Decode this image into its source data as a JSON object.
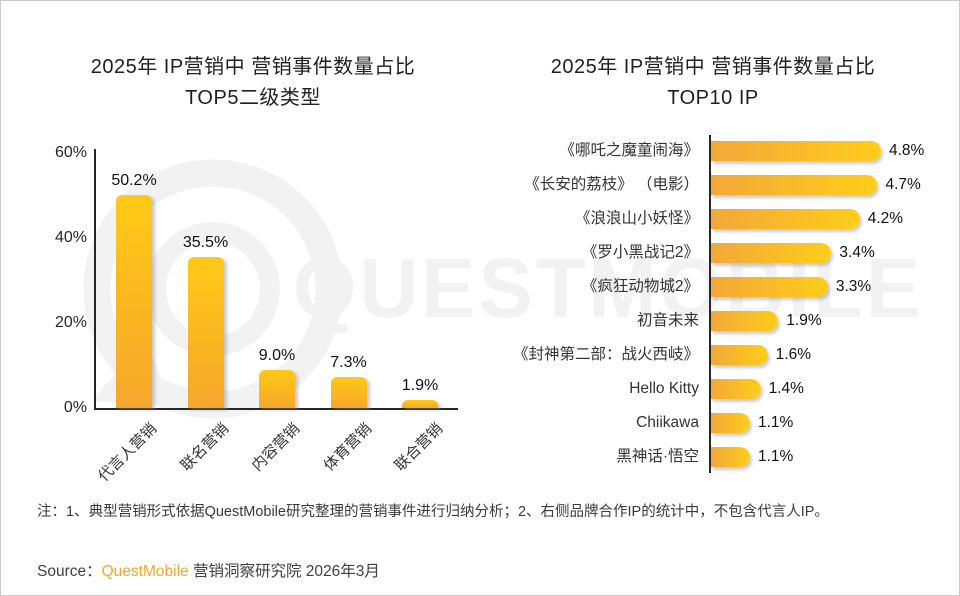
{
  "page": {
    "background": "#ffffff",
    "border_color": "#c9c9c9"
  },
  "watermark": {
    "text": "QUESTMOBILE",
    "color": "#f2f2f2",
    "logo": "questmobile-q-ring-logo"
  },
  "colors": {
    "bar_vertical_top": "#FFC917",
    "bar_vertical_bottom": "#F6A72B",
    "bar_horizontal_left": "#F2A838",
    "bar_horizontal_right": "#FFCD1A",
    "axis": "#262626",
    "brand_orange": "#F7A428",
    "text_dark": "#1f1f1f"
  },
  "chart_data": [
    {
      "type": "bar",
      "orientation": "vertical",
      "title": "2025年 IP营销中 营销事件数量占比",
      "subtitle": "TOP5二级类型",
      "categories": [
        "代言人营销",
        "联名营销",
        "内容营销",
        "体育营销",
        "联合营销"
      ],
      "values": [
        50.2,
        35.5,
        9.0,
        7.3,
        1.9
      ],
      "value_labels": [
        "50.2%",
        "35.5%",
        "9.0%",
        "7.3%",
        "1.9%"
      ],
      "yticks": [
        "60%",
        "40%",
        "20%",
        "0%"
      ],
      "ylim": [
        0,
        60
      ],
      "xlabel": "",
      "ylabel": "",
      "grid": false,
      "legend": false
    },
    {
      "type": "bar",
      "orientation": "horizontal",
      "title": "2025年 IP营销中 营销事件数量占比",
      "subtitle": "TOP10 IP",
      "categories": [
        "《哪吒之魔童闹海》",
        "《长安的荔枝》 （电影）",
        "《浪浪山小妖怪》",
        "《罗小黑战记2》",
        "《疯狂动物城2》",
        "初音未来",
        "《封神第二部：战火西岐》",
        "Hello Kitty",
        "Chiikawa",
        "黑神话·悟空"
      ],
      "values": [
        4.8,
        4.7,
        4.2,
        3.4,
        3.3,
        1.9,
        1.6,
        1.4,
        1.1,
        1.1
      ],
      "value_labels": [
        "4.8%",
        "4.7%",
        "4.2%",
        "3.4%",
        "3.3%",
        "1.9%",
        "1.6%",
        "1.4%",
        "1.1%",
        "1.1%"
      ],
      "xlim": [
        0,
        5.1
      ],
      "xlabel": "",
      "ylabel": "",
      "grid": false,
      "legend": false
    }
  ],
  "footnote": "注：1、典型营销形式依据QuestMobile研究整理的营销事件进行归纳分析；2、右侧品牌合作IP的统计中，不包含代言人IP。",
  "source": {
    "prefix": "Source：",
    "brand": "QuestMobile",
    "suffix": " 营销洞察研究院 2026年3月"
  }
}
